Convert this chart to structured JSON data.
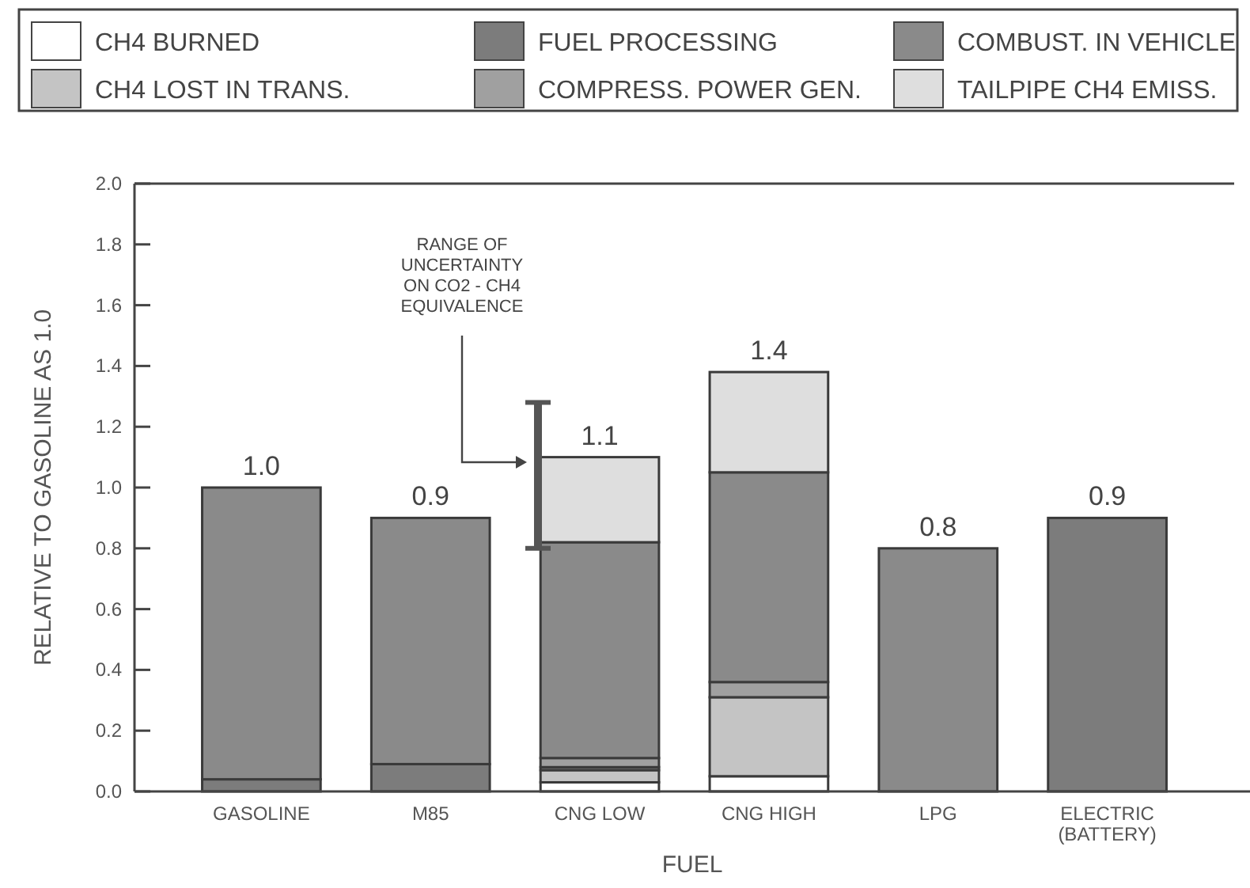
{
  "chart_data": {
    "type": "bar",
    "stacked": true,
    "xlabel": "FUEL",
    "ylabel": "RELATIVE TO GASOLINE AS 1.0",
    "categories": [
      "GASOLINE",
      "M85",
      "CNG LOW",
      "CNG HIGH",
      "LPG",
      "ELECTRIC\n(BATTERY)"
    ],
    "series": [
      {
        "name": "CH4 BURNED",
        "color": "#ffffff",
        "values": [
          0,
          0,
          0.03,
          0.05,
          0,
          0
        ]
      },
      {
        "name": "CH4 LOST IN TRANS.",
        "color": "#c4c4c4",
        "values": [
          0,
          0,
          0.04,
          0.26,
          0,
          0
        ]
      },
      {
        "name": "FUEL PROCESSING",
        "color": "#7c7c7c",
        "values": [
          0.04,
          0.09,
          0.01,
          null,
          0,
          0.9
        ]
      },
      {
        "name": "COMPRESS. POWER GEN.",
        "color": "#a0a0a0",
        "values": [
          0,
          0,
          0.03,
          0.05,
          0,
          0
        ]
      },
      {
        "name": "COMBUST. IN VEHICLE",
        "color": "#8a8a8a",
        "values": [
          0.96,
          0.81,
          0.71,
          0.69,
          0.8,
          0
        ]
      },
      {
        "name": "TAILPIPE CH4 EMISS.",
        "color": "#dedede",
        "values": [
          0,
          0,
          0.28,
          0.33,
          0,
          0
        ]
      }
    ],
    "totals": [
      "1.0",
      "0.9",
      "1.1",
      "1.4",
      "0.8",
      "0.9"
    ],
    "ylim": [
      0,
      2
    ],
    "yticks": [
      {
        "value": 0,
        "label": "0.0"
      },
      0.2,
      0.4,
      0.6,
      0.8,
      {
        "value": 1,
        "label": "1.0"
      },
      1.2,
      1.4,
      1.6,
      1.8,
      {
        "value": 2,
        "label": "2.0"
      }
    ],
    "grid": false,
    "legend": "top",
    "annotations": [
      "RANGE OF\nUNCERTAINTY\nON CO2 - CH4\nEQUIVALENCE"
    ]
  }
}
